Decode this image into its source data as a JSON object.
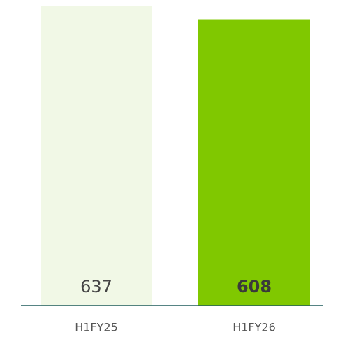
{
  "chart_data": {
    "type": "bar",
    "categories": [
      "H1FY25",
      "H1FY26"
    ],
    "values": [
      637,
      608
    ],
    "colors": [
      "#f1f8e6",
      "#80c800"
    ]
  }
}
